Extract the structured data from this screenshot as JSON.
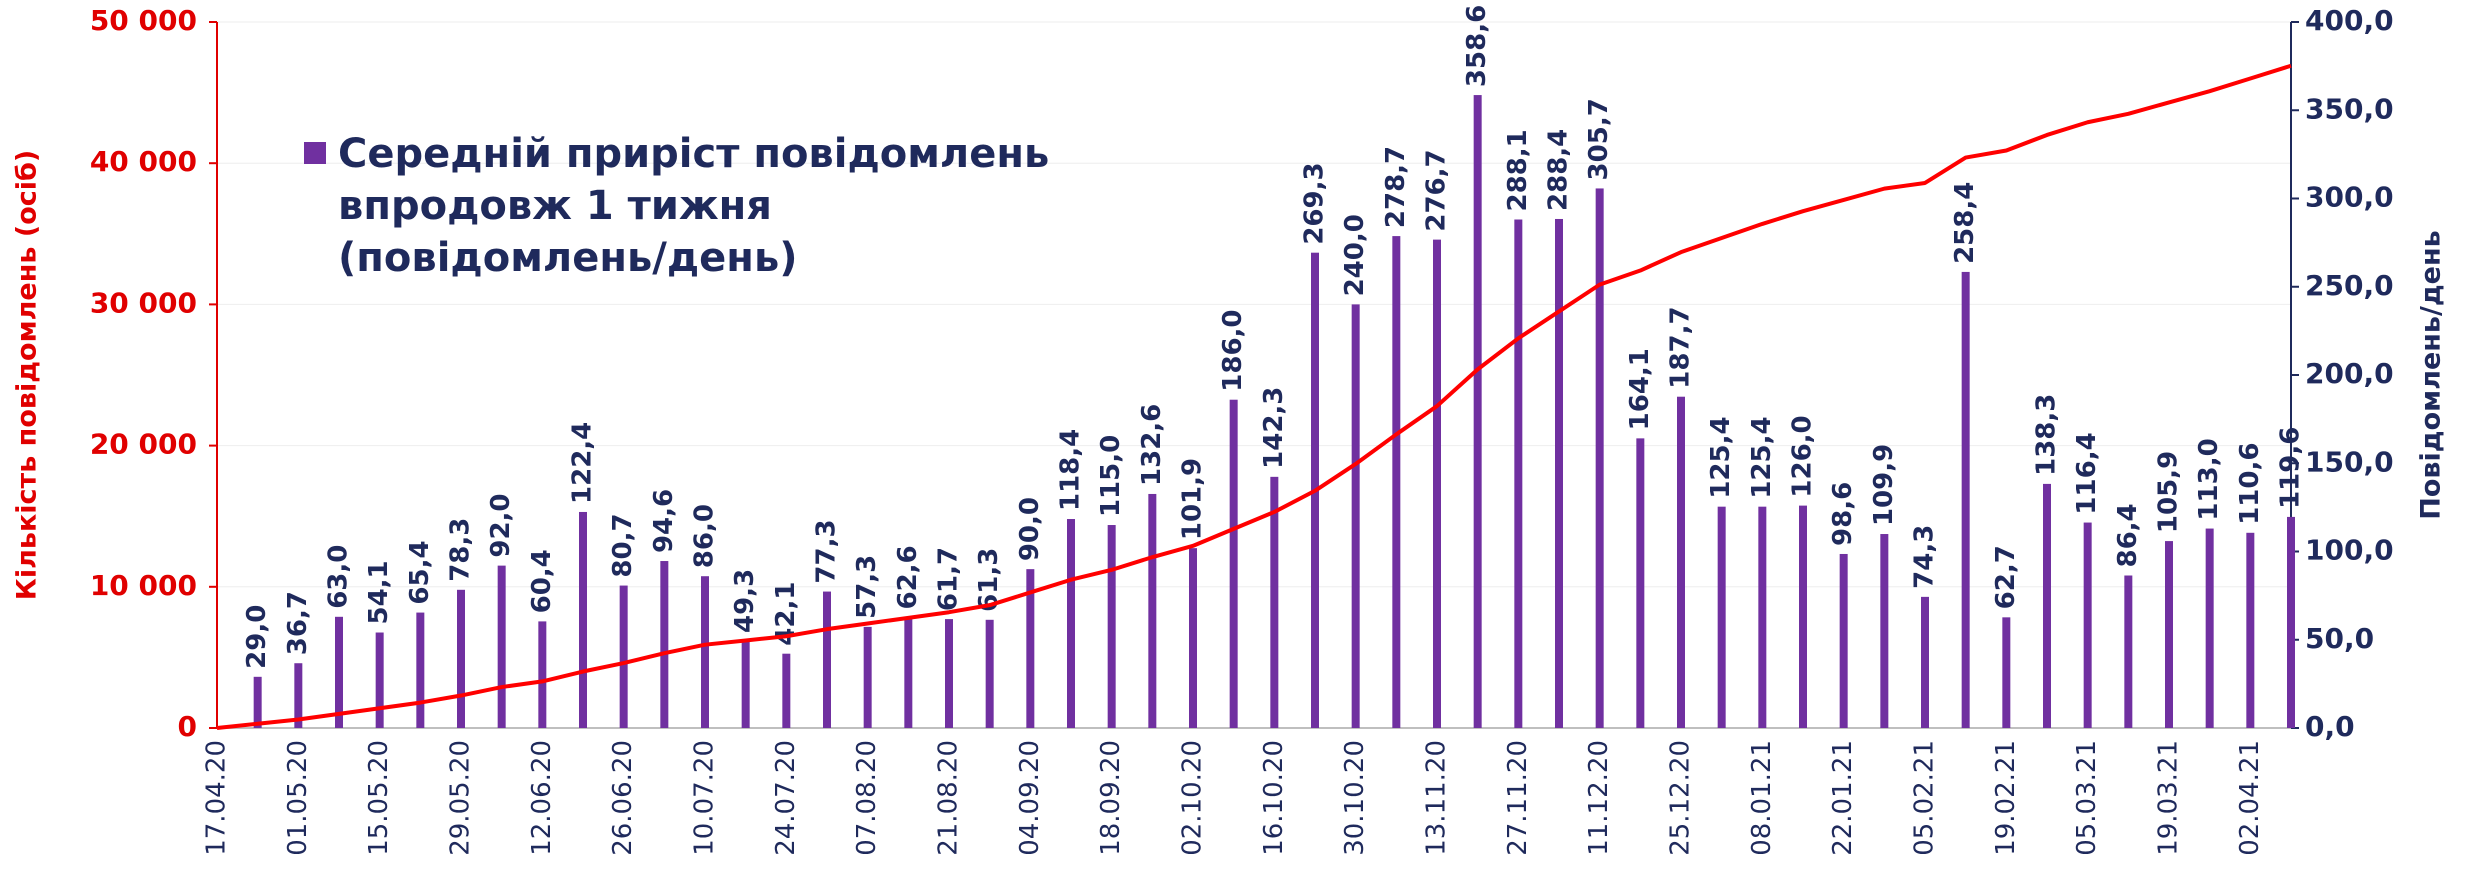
{
  "chart_data": {
    "type": "bar",
    "ylabel": "Кількість повідомлень (осіб)",
    "y2label": "Повідомлень/день",
    "categories": [
      "17.04.20",
      null,
      "01.05.20",
      null,
      "15.05.20",
      null,
      "29.05.20",
      null,
      "12.06.20",
      null,
      "26.06.20",
      null,
      "10.07.20",
      null,
      "24.07.20",
      null,
      "07.08.20",
      null,
      "21.08.20",
      null,
      "04.09.20",
      null,
      "18.09.20",
      null,
      "02.10.20",
      null,
      "16.10.20",
      null,
      "30.10.20",
      null,
      "13.11.20",
      null,
      "27.11.20",
      null,
      "11.12.20",
      null,
      "25.12.20",
      null,
      "08.01.21",
      null,
      "22.01.21",
      null,
      "05.02.21",
      null,
      "19.02.21",
      null,
      "05.03.21",
      null,
      "19.03.21",
      null,
      "02.04.21",
      null
    ],
    "series": [
      {
        "name": "Середній приріст повідомлень впродовж 1 тижня (повідомлень/день)",
        "type": "bar",
        "axis": "y2",
        "color": "#7030a0",
        "values": [
          null,
          29.0,
          36.7,
          63.0,
          54.1,
          65.4,
          78.3,
          92.0,
          60.4,
          122.4,
          80.7,
          94.6,
          86.0,
          49.3,
          42.1,
          77.3,
          57.3,
          62.6,
          61.7,
          61.3,
          90.0,
          118.4,
          115.0,
          132.6,
          101.9,
          186.0,
          142.3,
          269.3,
          240.0,
          278.7,
          276.7,
          358.6,
          288.1,
          288.4,
          305.7,
          164.1,
          187.7,
          125.4,
          125.4,
          126.0,
          98.6,
          109.9,
          74.3,
          258.4,
          62.7,
          138.3,
          116.4,
          86.4,
          105.9,
          113.0,
          110.6,
          119.6
        ],
        "value_labels": [
          null,
          "29,0",
          "36,7",
          "63,0",
          "54,1",
          "65,4",
          "78,3",
          "92,0",
          "60,4",
          "122,4",
          "80,7",
          "94,6",
          "86,0",
          "49,3",
          "42,1",
          "77,3",
          "57,3",
          "62,6",
          "61,7",
          "61,3",
          "90,0",
          "118,4",
          "115,0",
          "132,6",
          "101,9",
          "186,0",
          "142,3",
          "269,3",
          "240,0",
          "278,7",
          "276,7",
          "358,6",
          "288,1",
          "288,4",
          "305,7",
          "164,1",
          "187,7",
          "125,4",
          "125,4",
          "126,0",
          "98,6",
          "109,9",
          "74,3",
          "258,4",
          "62,7",
          "138,3",
          "116,4",
          "86,4",
          "105,9",
          "113,0",
          "110,6",
          "119,6"
        ]
      },
      {
        "type": "line",
        "color": "#ff0000",
        "values": [
          0,
          300,
          600,
          1000,
          1400,
          1800,
          2300,
          2900,
          3300,
          4000,
          4600,
          5300,
          5900,
          6200,
          6500,
          7000,
          7400,
          7800,
          8200,
          8700,
          9600,
          10500,
          11200,
          12100,
          12900,
          14100,
          15300,
          16800,
          18700,
          20800,
          22800,
          25400,
          27600,
          29500,
          31400,
          32400,
          33700,
          34700,
          35700,
          36600,
          37400,
          38200,
          38600,
          40400,
          40900,
          42000,
          42900,
          43500,
          44300,
          45100,
          46000,
          46900
        ]
      }
    ],
    "ylim": [
      0,
      50000
    ],
    "yticks": [
      0,
      {
        "value": 10000,
        "label": "10 000"
      },
      {
        "value": 20000,
        "label": "20 000"
      },
      {
        "value": 30000,
        "label": "30 000"
      },
      {
        "value": 40000,
        "label": "40 000"
      },
      {
        "value": 50000,
        "label": "50 000"
      }
    ],
    "y2lim": [
      0,
      400
    ],
    "y2ticks": [
      {
        "value": 0,
        "label": "0,0"
      },
      {
        "value": 50,
        "label": "50,0"
      },
      {
        "value": 100,
        "label": "100,0"
      },
      {
        "value": 150,
        "label": "150,0"
      },
      {
        "value": 200,
        "label": "200,0"
      },
      {
        "value": 250,
        "label": "250,0"
      },
      {
        "value": 300,
        "label": "300,0"
      },
      {
        "value": 350,
        "label": "350,0"
      },
      {
        "value": 400,
        "label": "400,0"
      }
    ],
    "grid": true
  }
}
